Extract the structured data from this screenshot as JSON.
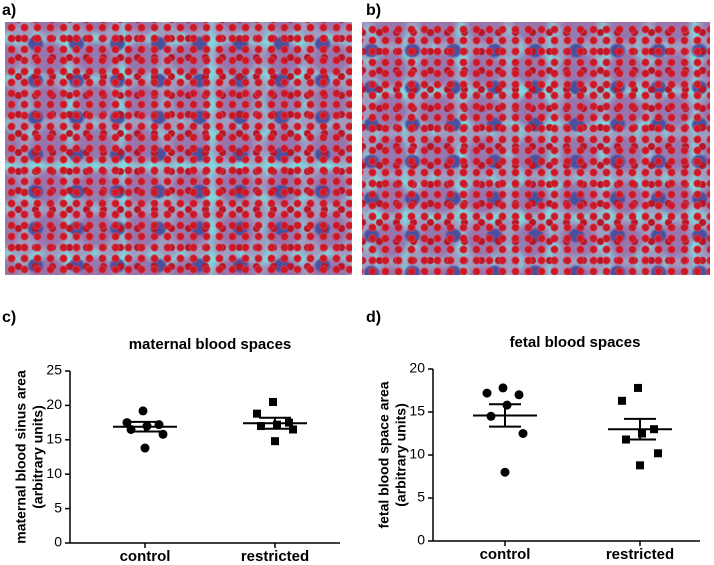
{
  "panels": [
    "a)",
    "b)",
    "c)",
    "d)"
  ],
  "chart_data": [
    {
      "type": "dot",
      "title": "maternal blood spaces",
      "ylabel": [
        "maternal blood sinus area",
        "(arbitrary units)"
      ],
      "categories": [
        "control",
        "restricted"
      ],
      "markers": [
        "circle",
        "square"
      ],
      "color": "#000000",
      "groups": [
        {
          "values": [
            19.2,
            17.5,
            17.2,
            17.0,
            16.5,
            15.8,
            13.8
          ],
          "mean": 16.9,
          "sem": 0.7
        },
        {
          "values": [
            20.5,
            18.8,
            17.5,
            17.2,
            17.0,
            16.5,
            14.8
          ],
          "mean": 17.4,
          "sem": 0.8
        }
      ],
      "ylim": [
        0,
        25
      ],
      "yticks": [
        0,
        5,
        10,
        15,
        20,
        25
      ]
    },
    {
      "type": "dot",
      "title": "fetal blood spaces",
      "ylabel": [
        "fetal blood space area",
        "(arbitrary units)"
      ],
      "categories": [
        "control",
        "restricted"
      ],
      "markers": [
        "circle",
        "square"
      ],
      "color": "#000000",
      "groups": [
        {
          "values": [
            17.8,
            17.2,
            17.0,
            15.8,
            14.5,
            12.5,
            8.0
          ],
          "mean": 14.6,
          "sem": 1.3
        },
        {
          "values": [
            17.8,
            16.3,
            13.0,
            12.5,
            11.8,
            10.2,
            8.8
          ],
          "mean": 13.0,
          "sem": 1.2
        }
      ],
      "ylim": [
        0,
        20
      ],
      "yticks": [
        0,
        5,
        10,
        15,
        20
      ]
    }
  ]
}
